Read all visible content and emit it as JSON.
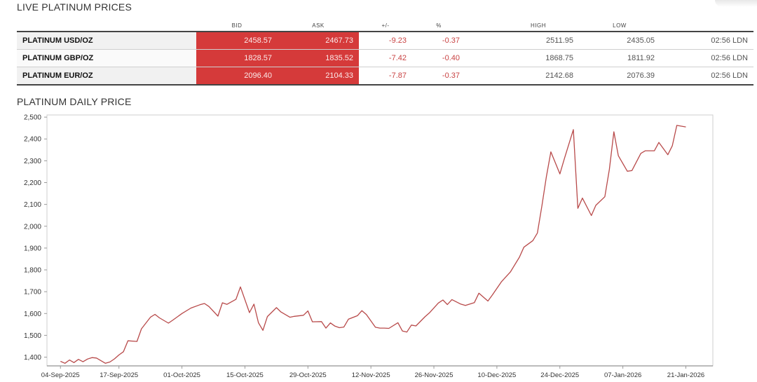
{
  "titles": {
    "live": "LIVE PLATINUM PRICES",
    "daily": "PLATINUM DAILY PRICE"
  },
  "table": {
    "headers": [
      "BID",
      "ASK",
      "+/-",
      "%",
      "HIGH",
      "LOW"
    ],
    "rows": [
      {
        "name": "PLATINUM USD/OZ",
        "bid": "2458.57",
        "ask": "2467.73",
        "change": "-9.23",
        "percent": "-0.37",
        "high": "2511.95",
        "low": "2435.05",
        "time": "02:56 LDN"
      },
      {
        "name": "PLATINUM GBP/OZ",
        "bid": "1828.57",
        "ask": "1835.52",
        "change": "-7.42",
        "percent": "-0.40",
        "high": "1868.75",
        "low": "1811.92",
        "time": "02:56 LDN"
      },
      {
        "name": "PLATINUM EUR/OZ",
        "bid": "2096.40",
        "ask": "2104.33",
        "change": "-7.87",
        "percent": "-0.37",
        "high": "2142.68",
        "low": "2076.39",
        "time": "02:56 LDN"
      }
    ]
  },
  "colors": {
    "bid_ask_bg": "#d53a3a",
    "negative": "#c94343",
    "line": "#b84a4a"
  },
  "chart_data": {
    "type": "line",
    "title": "PLATINUM DAILY PRICE",
    "xlabel": "",
    "ylabel": "",
    "ylim": [
      1360,
      2510
    ],
    "yticks": [
      1400,
      1500,
      1600,
      1700,
      1800,
      1900,
      2000,
      2100,
      2200,
      2300,
      2400,
      2500
    ],
    "ytick_labels": [
      "1,400",
      "1,500",
      "1,600",
      "1,700",
      "1,800",
      "1,900",
      "2,000",
      "2,100",
      "2,200",
      "2,300",
      "2,400",
      "2,500"
    ],
    "xlim": [
      "2025-09-01",
      "2026-01-27"
    ],
    "xticks": [
      {
        "date": "2025-09-04",
        "label": "04-Sep-2025"
      },
      {
        "date": "2025-09-17",
        "label": "17-Sep-2025"
      },
      {
        "date": "2025-10-01",
        "label": "01-Oct-2025"
      },
      {
        "date": "2025-10-15",
        "label": "15-Oct-2025"
      },
      {
        "date": "2025-10-29",
        "label": "29-Oct-2025"
      },
      {
        "date": "2025-11-12",
        "label": "12-Nov-2025"
      },
      {
        "date": "2025-11-26",
        "label": "26-Nov-2025"
      },
      {
        "date": "2025-12-10",
        "label": "10-Dec-2025"
      },
      {
        "date": "2025-12-24",
        "label": "24-Dec-2025"
      },
      {
        "date": "2026-01-07",
        "label": "07-Jan-2026"
      },
      {
        "date": "2026-01-21",
        "label": "21-Jan-2026"
      }
    ],
    "grid": false,
    "series": [
      {
        "points": [
          [
            "2025-09-04",
            1381
          ],
          [
            "2025-09-05",
            1372
          ],
          [
            "2025-09-06",
            1387
          ],
          [
            "2025-09-07",
            1375
          ],
          [
            "2025-09-08",
            1390
          ],
          [
            "2025-09-09",
            1379
          ],
          [
            "2025-09-10",
            1391
          ],
          [
            "2025-09-11",
            1398
          ],
          [
            "2025-09-12",
            1396
          ],
          [
            "2025-09-14",
            1372
          ],
          [
            "2025-09-15",
            1378
          ],
          [
            "2025-09-16",
            1392
          ],
          [
            "2025-09-17",
            1410
          ],
          [
            "2025-09-18",
            1425
          ],
          [
            "2025-09-19",
            1475
          ],
          [
            "2025-09-21",
            1472
          ],
          [
            "2025-09-22",
            1530
          ],
          [
            "2025-09-24",
            1583
          ],
          [
            "2025-09-25",
            1596
          ],
          [
            "2025-09-26",
            1580
          ],
          [
            "2025-09-28",
            1556
          ],
          [
            "2025-09-29",
            1570
          ],
          [
            "2025-10-01",
            1600
          ],
          [
            "2025-10-03",
            1625
          ],
          [
            "2025-10-05",
            1640
          ],
          [
            "2025-10-06",
            1646
          ],
          [
            "2025-10-07",
            1632
          ],
          [
            "2025-10-09",
            1588
          ],
          [
            "2025-10-10",
            1649
          ],
          [
            "2025-10-11",
            1642
          ],
          [
            "2025-10-13",
            1665
          ],
          [
            "2025-10-14",
            1722
          ],
          [
            "2025-10-16",
            1604
          ],
          [
            "2025-10-17",
            1643
          ],
          [
            "2025-10-18",
            1558
          ],
          [
            "2025-10-19",
            1523
          ],
          [
            "2025-10-20",
            1586
          ],
          [
            "2025-10-22",
            1627
          ],
          [
            "2025-10-23",
            1607
          ],
          [
            "2025-10-25",
            1583
          ],
          [
            "2025-10-26",
            1587
          ],
          [
            "2025-10-28",
            1592
          ],
          [
            "2025-10-29",
            1612
          ],
          [
            "2025-10-30",
            1562
          ],
          [
            "2025-11-01",
            1563
          ],
          [
            "2025-11-02",
            1533
          ],
          [
            "2025-11-03",
            1557
          ],
          [
            "2025-11-04",
            1542
          ],
          [
            "2025-11-05",
            1535
          ],
          [
            "2025-11-06",
            1538
          ],
          [
            "2025-11-07",
            1574
          ],
          [
            "2025-11-09",
            1590
          ],
          [
            "2025-11-10",
            1613
          ],
          [
            "2025-11-11",
            1595
          ],
          [
            "2025-11-13",
            1537
          ],
          [
            "2025-11-14",
            1533
          ],
          [
            "2025-11-15",
            1533
          ],
          [
            "2025-11-16",
            1532
          ],
          [
            "2025-11-18",
            1558
          ],
          [
            "2025-11-19",
            1520
          ],
          [
            "2025-11-20",
            1515
          ],
          [
            "2025-11-21",
            1547
          ],
          [
            "2025-11-22",
            1543
          ],
          [
            "2025-11-24",
            1585
          ],
          [
            "2025-11-25",
            1603
          ],
          [
            "2025-11-27",
            1648
          ],
          [
            "2025-11-28",
            1662
          ],
          [
            "2025-11-29",
            1641
          ],
          [
            "2025-11-30",
            1664
          ],
          [
            "2025-12-02",
            1643
          ],
          [
            "2025-12-03",
            1637
          ],
          [
            "2025-12-05",
            1650
          ],
          [
            "2025-12-06",
            1693
          ],
          [
            "2025-12-08",
            1657
          ],
          [
            "2025-12-09",
            1685
          ],
          [
            "2025-12-11",
            1745
          ],
          [
            "2025-12-13",
            1790
          ],
          [
            "2025-12-15",
            1858
          ],
          [
            "2025-12-16",
            1904
          ],
          [
            "2025-12-18",
            1934
          ],
          [
            "2025-12-19",
            1969
          ],
          [
            "2025-12-20",
            2093
          ],
          [
            "2025-12-21",
            2227
          ],
          [
            "2025-12-22",
            2341
          ],
          [
            "2025-12-24",
            2240
          ],
          [
            "2025-12-25",
            2310
          ],
          [
            "2025-12-27",
            2443
          ],
          [
            "2025-12-28",
            2082
          ],
          [
            "2025-12-29",
            2129
          ],
          [
            "2025-12-31",
            2049
          ],
          [
            "2026-01-01",
            2096
          ],
          [
            "2026-01-03",
            2135
          ],
          [
            "2026-01-04",
            2261
          ],
          [
            "2026-01-05",
            2433
          ],
          [
            "2026-01-06",
            2323
          ],
          [
            "2026-01-08",
            2252
          ],
          [
            "2026-01-09",
            2255
          ],
          [
            "2026-01-11",
            2334
          ],
          [
            "2026-01-12",
            2346
          ],
          [
            "2026-01-14",
            2346
          ],
          [
            "2026-01-15",
            2384
          ],
          [
            "2026-01-17",
            2328
          ],
          [
            "2026-01-18",
            2369
          ],
          [
            "2026-01-19",
            2462
          ],
          [
            "2026-01-21",
            2455
          ]
        ]
      }
    ]
  }
}
